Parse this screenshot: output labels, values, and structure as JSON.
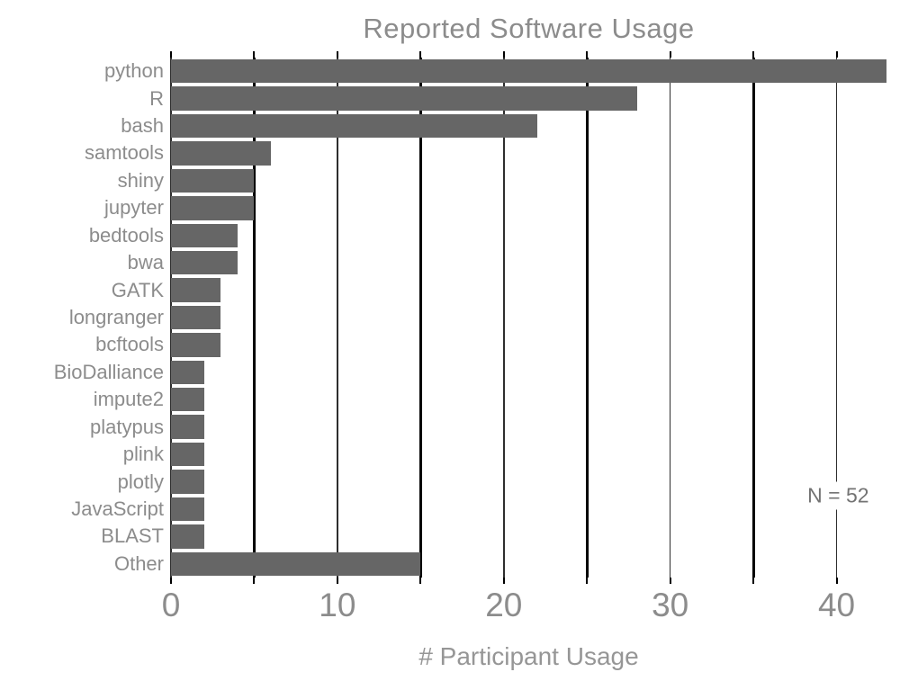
{
  "title": "Reported Software Usage",
  "xlabel": "# Participant Usage",
  "annotation": {
    "text": "N = 52",
    "x_value": 40.1,
    "y_slot_index": 15.5
  },
  "colors": {
    "bar": "#666666",
    "title_text": "#8c8c8c",
    "axis_text": "#8c8c8c",
    "grid_thin": "#2e2e2e",
    "grid_thick": "#000000",
    "tick_mark": "#000000",
    "background": "#ffffff"
  },
  "chart_data": {
    "type": "bar",
    "orientation": "horizontal",
    "title": "Reported Software Usage",
    "xlabel": "# Participant Usage",
    "ylabel": "",
    "categories": [
      "python",
      "R",
      "bash",
      "samtools",
      "shiny",
      "jupyter",
      "bedtools",
      "bwa",
      "GATK",
      "longranger",
      "bcftools",
      "BioDalliance",
      "impute2",
      "platypus",
      "plink",
      "plotly",
      "JavaScript",
      "BLAST",
      "Other"
    ],
    "values": [
      43,
      28,
      22,
      6,
      5,
      5,
      4,
      4,
      3,
      3,
      3,
      2,
      2,
      2,
      2,
      2,
      2,
      2,
      15
    ],
    "xlim": [
      0,
      43
    ],
    "x_tick_label_values": [
      0,
      10,
      20,
      30,
      40
    ],
    "x_tick_mark_values": [
      0,
      5,
      10,
      15,
      20,
      25,
      30,
      35,
      40
    ],
    "grid_thick_values": [
      5,
      15,
      25,
      35
    ],
    "grid_thin_values": [
      0,
      10,
      20,
      30,
      40
    ],
    "grid": true,
    "legend": "none",
    "annotation_text": "N = 52"
  }
}
